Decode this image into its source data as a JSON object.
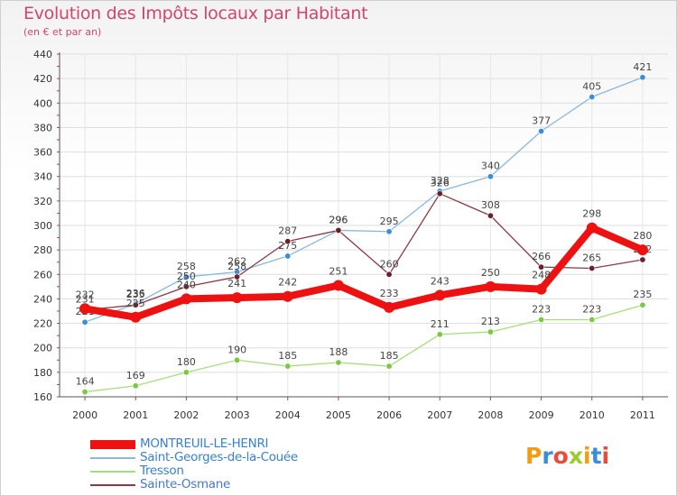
{
  "title": "Evolution des Impôts locaux par Habitant",
  "subtitle": "(en € et par an)",
  "logo": {
    "text": "Proxiti",
    "colors": [
      "#f39c12",
      "#3a8ed8",
      "#e74c3c",
      "#9acd32",
      "#f39c12",
      "#3a8ed8",
      "#e74c3c"
    ]
  },
  "chart_data": {
    "type": "line",
    "title": "Evolution des Impôts locaux par Habitant",
    "subtitle": "(en € et par an)",
    "xlabel": "",
    "ylabel": "",
    "ylim": [
      160,
      440
    ],
    "yticks": [
      160,
      180,
      200,
      220,
      240,
      260,
      280,
      300,
      320,
      340,
      360,
      380,
      400,
      420,
      440
    ],
    "categories": [
      "2000",
      "2001",
      "2002",
      "2003",
      "2004",
      "2005",
      "2006",
      "2007",
      "2008",
      "2009",
      "2010",
      "2011"
    ],
    "grid": true,
    "legend_position": "bottom-left",
    "series": [
      {
        "name": "MONTREUIL-LE-HENRI",
        "color": "#ee1111",
        "marker": "#ee1111",
        "width": "thick",
        "values": [
          232,
          225,
          240,
          241,
          242,
          251,
          233,
          243,
          250,
          248,
          298,
          280
        ]
      },
      {
        "name": "Saint-Georges-de-la-Couée",
        "color": "#8ab8e0",
        "marker": "#3a8ed8",
        "width": "thin",
        "values": [
          221,
          236,
          258,
          262,
          275,
          296,
          295,
          328,
          340,
          377,
          405,
          421
        ]
      },
      {
        "name": "Tresson",
        "color": "#a8dd7c",
        "marker": "#7ac943",
        "width": "thin",
        "values": [
          164,
          169,
          180,
          190,
          185,
          188,
          185,
          211,
          213,
          223,
          223,
          235
        ]
      },
      {
        "name": "Sainte-Osmane",
        "color": "#8a3a45",
        "marker": "#6b1f2a",
        "width": "thin",
        "values": [
          231,
          235,
          250,
          258,
          287,
          296,
          260,
          326,
          308,
          266,
          265,
          272
        ]
      }
    ]
  }
}
